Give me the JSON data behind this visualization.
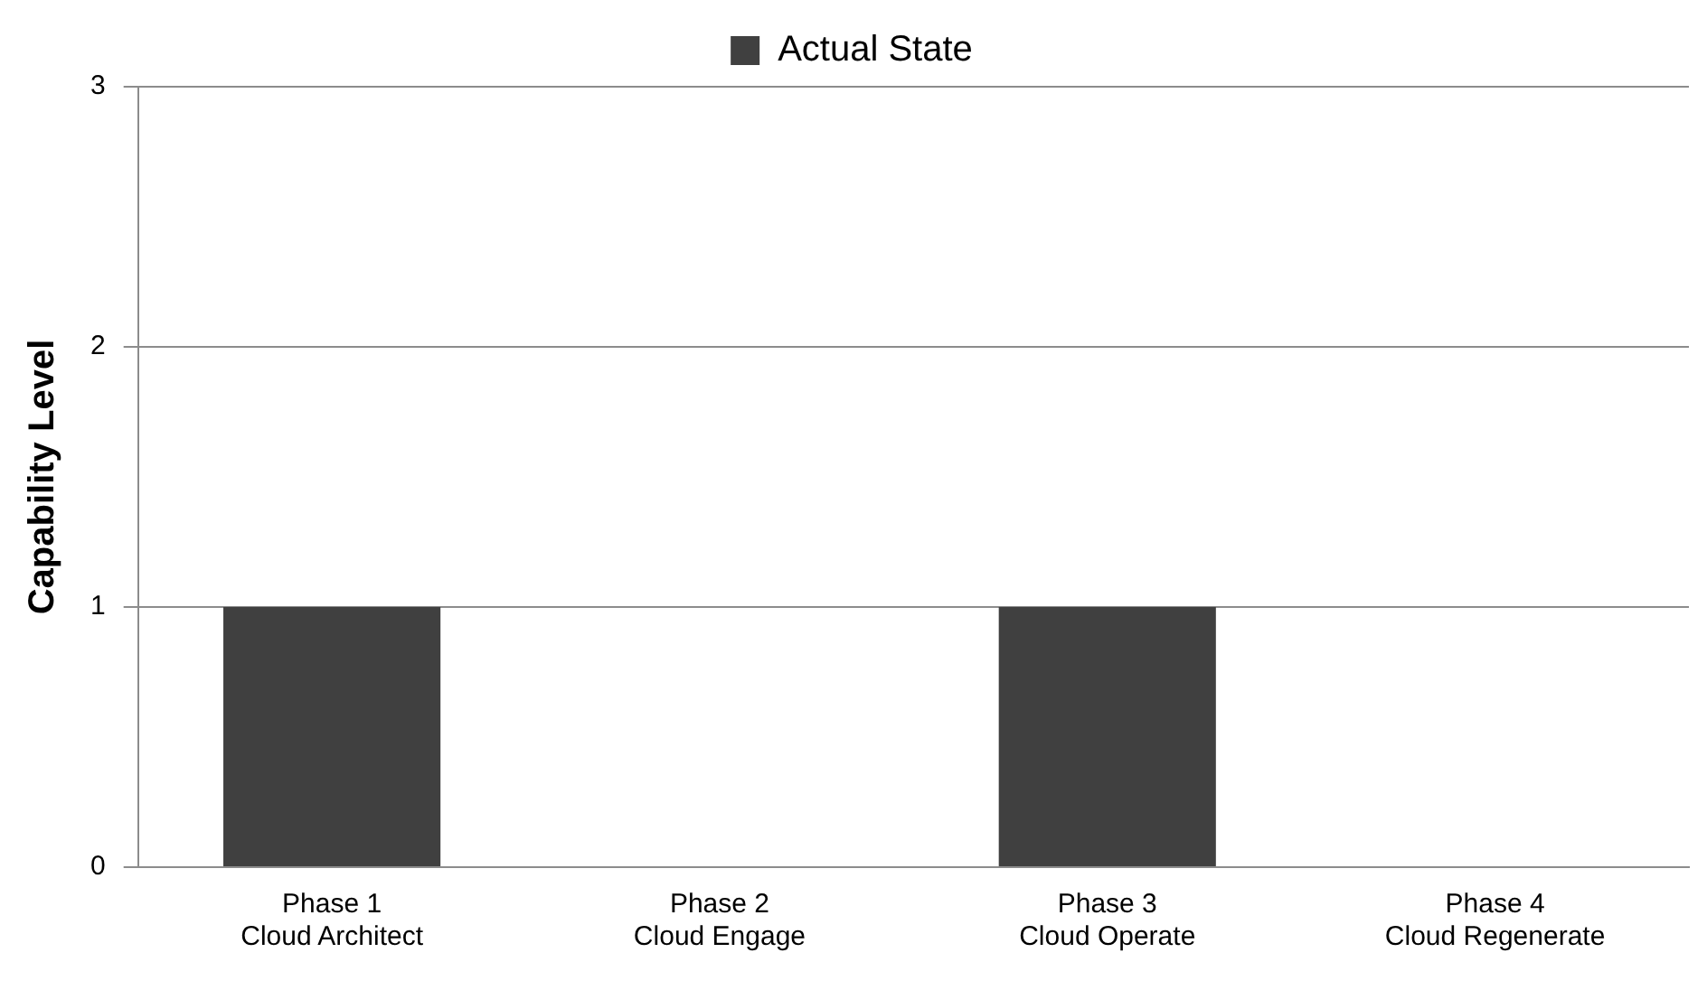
{
  "chart_data": {
    "type": "bar",
    "ylabel": "Capability Level",
    "categories": [
      "Phase 1\nCloud Architect",
      "Phase 2\nCloud Engage",
      "Phase 3\nCloud Operate",
      "Phase 4\nCloud Regenerate"
    ],
    "series": [
      {
        "name": "Actual State",
        "color": "#404040",
        "values": [
          1,
          0,
          1,
          0
        ]
      }
    ],
    "ylim": [
      0,
      3
    ],
    "yticks": [
      0,
      1,
      2,
      3
    ],
    "grid": "y",
    "legend": "top"
  }
}
